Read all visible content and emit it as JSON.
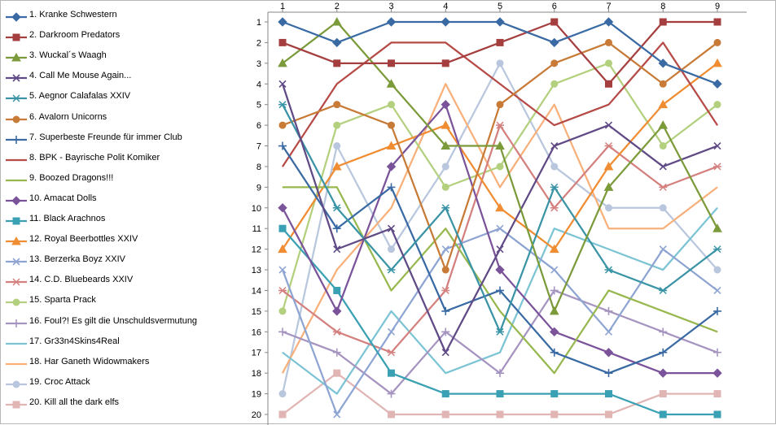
{
  "chart_data": {
    "type": "line",
    "x": [
      1,
      2,
      3,
      4,
      5,
      6,
      7,
      8,
      9
    ],
    "x_tick_labels": [
      "1",
      "2",
      "3",
      "4",
      "5",
      "6",
      "7",
      "8",
      "9"
    ],
    "y_tick_labels": [
      "1",
      "2",
      "3",
      "4",
      "5",
      "6",
      "7",
      "8",
      "9",
      "10",
      "11",
      "12",
      "13",
      "14",
      "15",
      "16",
      "17",
      "18",
      "19",
      "20"
    ],
    "ylim": [
      1,
      20
    ],
    "y_reversed": true,
    "x_axis_position": "top",
    "grid": false,
    "legend_position": "left",
    "series": [
      {
        "name": "1. Kranke Schwestern",
        "color": "#3a6aa3",
        "marker": "diamond",
        "values": [
          1,
          2,
          1,
          1,
          1,
          2,
          1,
          3,
          4
        ]
      },
      {
        "name": "2. Darkroom Predators",
        "color": "#a53f3f",
        "marker": "square",
        "values": [
          2,
          3,
          3,
          3,
          2,
          1,
          4,
          1,
          1
        ]
      },
      {
        "name": "3. Wuckal´s Waagh",
        "color": "#7b9a3a",
        "marker": "triangle",
        "values": [
          3,
          1,
          4,
          7,
          7,
          15,
          9,
          6,
          11
        ]
      },
      {
        "name": "4. Call Me Mouse Again...",
        "color": "#5f4a86",
        "marker": "x",
        "values": [
          4,
          12,
          11,
          17,
          12,
          7,
          6,
          8,
          7
        ]
      },
      {
        "name": "5. Aegnor Calafalas XXIV",
        "color": "#3a94a6",
        "marker": "star",
        "values": [
          5,
          10,
          13,
          10,
          16,
          9,
          13,
          14,
          12
        ]
      },
      {
        "name": "6. Avalorn Unicorns",
        "color": "#c87a37",
        "marker": "circle",
        "values": [
          6,
          5,
          6,
          13,
          5,
          3,
          2,
          4,
          2
        ]
      },
      {
        "name": "7. Superbeste Freunde für immer Club",
        "color": "#3a6aa3",
        "marker": "plus",
        "values": [
          7,
          11,
          9,
          15,
          14,
          17,
          18,
          17,
          15
        ]
      },
      {
        "name": "8. BPK - Bayrische Polit Komiker",
        "color": "#b64a47",
        "marker": "none",
        "values": [
          8,
          4,
          2,
          2,
          4,
          6,
          5,
          2,
          6
        ]
      },
      {
        "name": "9. Boozed Dragons!!!",
        "color": "#97b84e",
        "marker": "none",
        "values": [
          9,
          9,
          14,
          11,
          15,
          18,
          14,
          15,
          16
        ]
      },
      {
        "name": "10. Amacat Dolls",
        "color": "#7a539a",
        "marker": "diamond",
        "values": [
          10,
          15,
          8,
          5,
          13,
          16,
          17,
          18,
          18
        ]
      },
      {
        "name": "11. Black Arachnos",
        "color": "#3aa0b3",
        "marker": "square",
        "values": [
          11,
          14,
          18,
          19,
          19,
          19,
          19,
          20,
          20
        ]
      },
      {
        "name": "12. Royal Beerbottles XXIV",
        "color": "#f08c32",
        "marker": "triangle",
        "values": [
          12,
          8,
          7,
          6,
          10,
          12,
          8,
          5,
          3
        ]
      },
      {
        "name": "13. Berzerka Boyz XXIV",
        "color": "#8ea4d2",
        "marker": "x",
        "values": [
          13,
          20,
          16,
          12,
          11,
          13,
          16,
          12,
          14
        ]
      },
      {
        "name": "14. C.D. Bluebeards XXIV",
        "color": "#d3807e",
        "marker": "star",
        "values": [
          14,
          16,
          17,
          14,
          6,
          10,
          7,
          9,
          8
        ]
      },
      {
        "name": "15. Sparta Prack",
        "color": "#b3d07e",
        "marker": "circle",
        "values": [
          15,
          6,
          5,
          9,
          8,
          4,
          3,
          7,
          5
        ]
      },
      {
        "name": "16. Foul?! Es gilt die Unschuldsvermutung",
        "color": "#a594c0",
        "marker": "plus",
        "values": [
          16,
          17,
          19,
          16,
          18,
          14,
          15,
          16,
          17
        ]
      },
      {
        "name": "17. Gr33n4Skins4Real",
        "color": "#7cc4d4",
        "marker": "none",
        "values": [
          17,
          19,
          15,
          18,
          17,
          11,
          12,
          13,
          10
        ]
      },
      {
        "name": "18. Har Ganeth Widowmakers",
        "color": "#f8b07b",
        "marker": "none",
        "values": [
          18,
          13,
          10,
          4,
          9,
          5,
          11,
          11,
          9
        ]
      },
      {
        "name": "19. Croc Attack",
        "color": "#b9c7de",
        "marker": "circle",
        "values": [
          19,
          7,
          12,
          8,
          3,
          8,
          10,
          10,
          13
        ]
      },
      {
        "name": "20. Kill all the dark elfs",
        "color": "#e0b5b4",
        "marker": "square",
        "values": [
          20,
          18,
          20,
          20,
          20,
          20,
          20,
          19,
          19
        ]
      }
    ]
  }
}
